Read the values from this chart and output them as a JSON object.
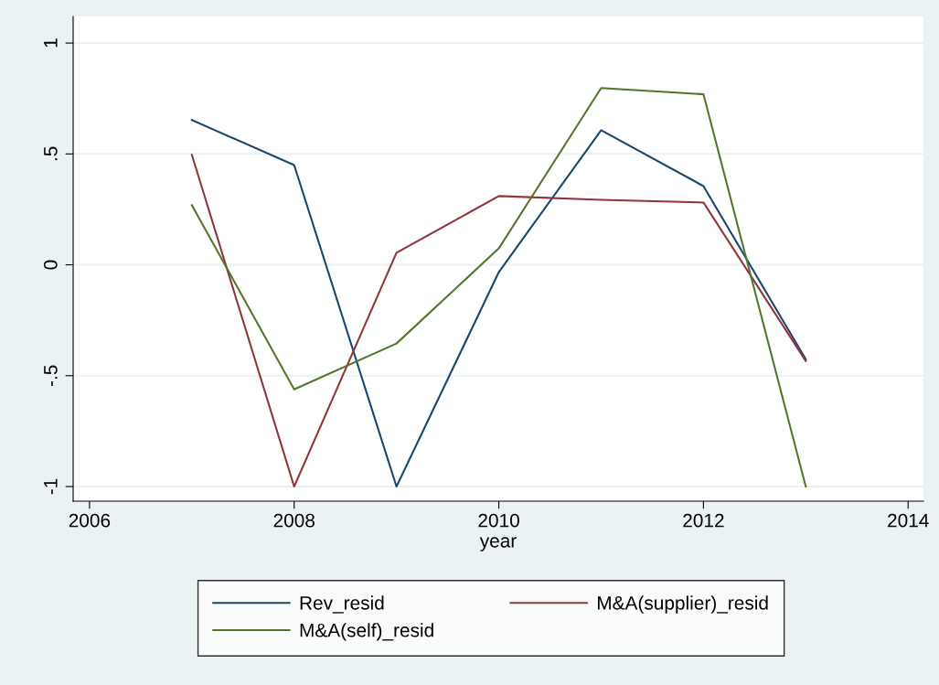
{
  "chart_data": {
    "type": "line",
    "xlabel": "year",
    "x": [
      2007,
      2008,
      2009,
      2010,
      2011,
      2012,
      2013
    ],
    "series": [
      {
        "name": "Rev_resid",
        "color": "#1a476f",
        "values": [
          0.653,
          0.45,
          -1,
          -0.033,
          0.607,
          0.355,
          -0.426
        ]
      },
      {
        "name": "M&A(supplier)_resid",
        "color": "#90353b",
        "values": [
          0.496,
          -1,
          0.054,
          0.31,
          0.293,
          0.281,
          -0.434
        ]
      },
      {
        "name": "M&A(self)_resid",
        "color": "#55752f",
        "values": [
          0.269,
          -0.562,
          -0.355,
          0.074,
          0.797,
          0.769,
          -1
        ]
      }
    ],
    "xlim": [
      2005.84,
      2014.15
    ],
    "xticks": [
      2006,
      2008,
      2010,
      2012,
      2014
    ],
    "ylim": [
      -1.066,
      1.12
    ],
    "yticks": [
      {
        "value": -1,
        "label": "-1"
      },
      {
        "value": -0.5,
        "label": "-.5"
      },
      0,
      {
        "value": 0.5,
        "label": ".5"
      },
      1
    ],
    "grid": "y",
    "legend": "bottom",
    "marker": "none",
    "line_style": "solid"
  }
}
